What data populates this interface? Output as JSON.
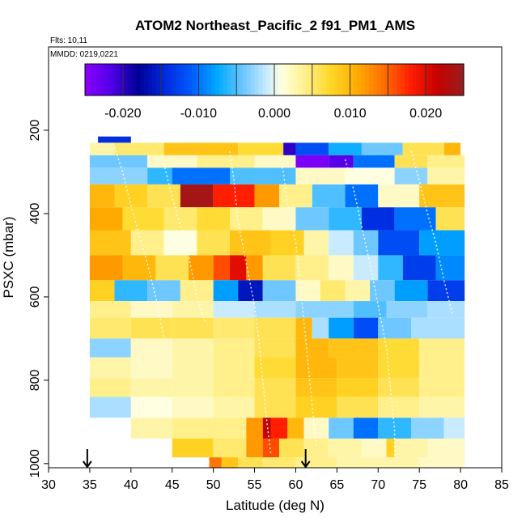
{
  "chart_data": {
    "type": "heatmap",
    "title": "ATOM2 Northeast_Pacific_2 f91_PM1_AMS",
    "annotations": {
      "flights": "Flts: 10,11",
      "dates": "MMDD: 0219,0221"
    },
    "xlabel": "Latitude (deg N)",
    "ylabel": "PSXC (mbar)",
    "xlim": [
      30,
      85
    ],
    "ylim": [
      1010,
      0
    ],
    "x_ticks": [
      "30",
      "35",
      "40",
      "45",
      "50",
      "55",
      "60",
      "65",
      "70",
      "75",
      "80",
      "85"
    ],
    "y_ticks": [
      "200",
      "400",
      "600",
      "800",
      "1000"
    ],
    "colorbar": {
      "range": [
        -0.025,
        0.025
      ],
      "tick_values": [
        -0.02,
        -0.01,
        0.0,
        0.01,
        0.02
      ],
      "tick_labels": [
        "-0.020",
        "-0.010",
        "0.000",
        "0.010",
        "0.020"
      ]
    },
    "markers": [
      {
        "type": "arrow-down",
        "x": 34.7
      },
      {
        "type": "arrow-down",
        "x": 61.2
      }
    ],
    "bands": [
      {
        "p_top": 215,
        "p_bot": 230,
        "segs": [
          [
            36,
            40,
            -0.014
          ]
        ]
      },
      {
        "p_top": 230,
        "p_bot": 260,
        "segs": [
          [
            35,
            38,
            0.003
          ],
          [
            38,
            44,
            0.005
          ],
          [
            44,
            53,
            0.009
          ],
          [
            53,
            58.5,
            0.007
          ],
          [
            58.5,
            60,
            -0.02
          ],
          [
            60,
            64,
            -0.012
          ],
          [
            64,
            68,
            -0.007
          ],
          [
            68,
            73,
            -0.004
          ],
          [
            73,
            78,
            0.006
          ],
          [
            78,
            80,
            0.01
          ]
        ]
      },
      {
        "p_top": 260,
        "p_bot": 290,
        "segs": [
          [
            35,
            42,
            -0.004
          ],
          [
            42,
            48,
            0.002
          ],
          [
            48,
            55,
            0.004
          ],
          [
            55,
            60,
            0.002
          ],
          [
            60,
            64,
            -0.024
          ],
          [
            64,
            67,
            -0.022
          ],
          [
            67,
            72,
            -0.01
          ],
          [
            72,
            76,
            0.006
          ],
          [
            76,
            80.5,
            0.004
          ]
        ]
      },
      {
        "p_top": 290,
        "p_bot": 330,
        "segs": [
          [
            35,
            42,
            -0.003
          ],
          [
            42,
            45,
            -0.006
          ],
          [
            45,
            52,
            -0.01
          ],
          [
            52,
            60,
            -0.005
          ],
          [
            60,
            66,
            0.002
          ],
          [
            66,
            72,
            0.001
          ],
          [
            72,
            76,
            -0.003
          ],
          [
            76,
            80.5,
            0.003
          ]
        ]
      },
      {
        "p_top": 330,
        "p_bot": 385,
        "segs": [
          [
            35,
            38,
            0.01
          ],
          [
            38,
            42,
            0.008
          ],
          [
            42,
            46,
            0.006
          ],
          [
            46,
            50,
            0.024
          ],
          [
            50,
            55,
            0.018
          ],
          [
            55,
            58,
            0.012
          ],
          [
            58,
            62,
            0.004
          ],
          [
            62,
            66,
            -0.005
          ],
          [
            66,
            70,
            -0.01
          ],
          [
            70,
            75,
            0.002
          ],
          [
            75,
            80.5,
            0.009
          ]
        ]
      },
      {
        "p_top": 385,
        "p_bot": 440,
        "segs": [
          [
            35,
            39,
            0.011
          ],
          [
            39,
            44,
            0.007
          ],
          [
            44,
            48,
            0.005
          ],
          [
            48,
            52,
            0.007
          ],
          [
            52,
            56,
            0.004
          ],
          [
            56,
            60,
            0.002
          ],
          [
            60,
            64,
            -0.004
          ],
          [
            64,
            68,
            -0.006
          ],
          [
            68,
            72,
            -0.014
          ],
          [
            72,
            77,
            -0.01
          ],
          [
            77,
            80.5,
            0.006
          ]
        ]
      },
      {
        "p_top": 440,
        "p_bot": 500,
        "segs": [
          [
            35,
            40,
            0.009
          ],
          [
            40,
            44,
            0.004
          ],
          [
            44,
            48,
            0.001
          ],
          [
            48,
            52,
            0.006
          ],
          [
            52,
            57,
            0.009
          ],
          [
            57,
            61,
            0.008
          ],
          [
            61,
            64,
            0.003
          ],
          [
            64,
            67,
            -0.001
          ],
          [
            67,
            70,
            -0.004
          ],
          [
            70,
            75,
            -0.012
          ],
          [
            75,
            80.5,
            -0.008
          ]
        ]
      },
      {
        "p_top": 500,
        "p_bot": 560,
        "segs": [
          [
            35,
            39,
            0.012
          ],
          [
            39,
            43,
            0.01
          ],
          [
            43,
            47,
            0.006
          ],
          [
            47,
            50,
            0.012
          ],
          [
            50,
            52,
            0.016
          ],
          [
            52,
            54,
            0.02
          ],
          [
            54,
            56,
            0.012
          ],
          [
            56,
            60,
            0.006
          ],
          [
            60,
            64,
            0.004
          ],
          [
            64,
            67,
            0.002
          ],
          [
            67,
            70,
            -0.001
          ],
          [
            70,
            73,
            -0.006
          ],
          [
            73,
            77,
            -0.013
          ],
          [
            77,
            80.5,
            -0.009
          ]
        ]
      },
      {
        "p_top": 560,
        "p_bot": 610,
        "segs": [
          [
            35,
            38,
            0.008
          ],
          [
            38,
            42,
            -0.006
          ],
          [
            42,
            46,
            -0.004
          ],
          [
            46,
            50,
            0.004
          ],
          [
            50,
            53,
            -0.008
          ],
          [
            53,
            56,
            -0.016
          ],
          [
            56,
            60,
            -0.004
          ],
          [
            60,
            63,
            0.002
          ],
          [
            63,
            66,
            0.005
          ],
          [
            66,
            69,
            0.003
          ],
          [
            69,
            72,
            -0.004
          ],
          [
            72,
            76,
            -0.008
          ],
          [
            76,
            80.5,
            -0.013
          ]
        ]
      },
      {
        "p_top": 610,
        "p_bot": 650,
        "segs": [
          [
            35,
            40,
            0.004
          ],
          [
            40,
            45,
            0.002
          ],
          [
            45,
            50,
            0.003
          ],
          [
            50,
            55,
            -0.001
          ],
          [
            55,
            60,
            -0.002
          ],
          [
            60,
            63,
            -0.003
          ],
          [
            63,
            67,
            -0.003
          ],
          [
            67,
            71,
            -0.005
          ],
          [
            71,
            76,
            -0.003
          ],
          [
            76,
            80.5,
            -0.002
          ]
        ]
      },
      {
        "p_top": 650,
        "p_bot": 700,
        "segs": [
          [
            35,
            40,
            0.005
          ],
          [
            40,
            45,
            0.006
          ],
          [
            45,
            50,
            0.006
          ],
          [
            50,
            55,
            0.005
          ],
          [
            55,
            60,
            0.006
          ],
          [
            60,
            62,
            0.01
          ],
          [
            62,
            64,
            -0.002
          ],
          [
            64,
            67,
            -0.008
          ],
          [
            67,
            70,
            -0.012
          ],
          [
            70,
            74,
            -0.004
          ],
          [
            74,
            80.5,
            -0.002
          ]
        ]
      },
      {
        "p_top": 700,
        "p_bot": 745,
        "segs": [
          [
            35,
            40,
            -0.003
          ],
          [
            40,
            45,
            0.002
          ],
          [
            45,
            50,
            0.003
          ],
          [
            50,
            55,
            0.004
          ],
          [
            55,
            60,
            0.006
          ],
          [
            60,
            64,
            0.01
          ],
          [
            64,
            70,
            0.009
          ],
          [
            70,
            75,
            0.007
          ],
          [
            75,
            80.5,
            0.004
          ]
        ]
      },
      {
        "p_top": 745,
        "p_bot": 795,
        "segs": [
          [
            35,
            40,
            0.003
          ],
          [
            40,
            45,
            0.002
          ],
          [
            45,
            50,
            0.003
          ],
          [
            50,
            55,
            0.004
          ],
          [
            55,
            60,
            0.007
          ],
          [
            60,
            65,
            0.01
          ],
          [
            65,
            70,
            0.009
          ],
          [
            70,
            75,
            0.007
          ],
          [
            75,
            80.5,
            0.004
          ]
        ]
      },
      {
        "p_top": 795,
        "p_bot": 840,
        "segs": [
          [
            35,
            40,
            0.004
          ],
          [
            40,
            45,
            0.003
          ],
          [
            45,
            50,
            0.003
          ],
          [
            50,
            55,
            0.004
          ],
          [
            55,
            60,
            0.006
          ],
          [
            60,
            65,
            0.009
          ],
          [
            65,
            70,
            0.008
          ],
          [
            70,
            75,
            0.006
          ],
          [
            75,
            80.5,
            0.004
          ]
        ]
      },
      {
        "p_top": 840,
        "p_bot": 890,
        "segs": [
          [
            35,
            40,
            -0.002
          ],
          [
            40,
            45,
            0.001
          ],
          [
            45,
            50,
            0.002
          ],
          [
            50,
            55,
            0.003
          ],
          [
            55,
            60,
            0.006
          ],
          [
            60,
            65,
            0.008
          ],
          [
            65,
            70,
            0.006
          ],
          [
            70,
            75,
            0.004
          ],
          [
            75,
            80.5,
            0.003
          ]
        ]
      },
      {
        "p_top": 890,
        "p_bot": 940,
        "segs": [
          [
            40,
            45,
            0.003
          ],
          [
            45,
            50,
            0.004
          ],
          [
            50,
            54,
            0.004
          ],
          [
            54,
            56,
            0.012
          ],
          [
            56,
            57,
            0.022
          ],
          [
            57,
            59,
            0.018
          ],
          [
            59,
            61,
            0.01
          ],
          [
            61,
            64,
            0.002
          ],
          [
            64,
            67,
            -0.004
          ],
          [
            67,
            70,
            -0.01
          ],
          [
            70,
            74,
            -0.006
          ],
          [
            74,
            78,
            -0.003
          ],
          [
            78,
            80.5,
            -0.001
          ]
        ]
      },
      {
        "p_top": 940,
        "p_bot": 985,
        "segs": [
          [
            45,
            50,
            0.008
          ],
          [
            50,
            54,
            0.005
          ],
          [
            54,
            56,
            0.012
          ],
          [
            56,
            58,
            0.016
          ],
          [
            58,
            61,
            0.006
          ],
          [
            61,
            64,
            0.004
          ],
          [
            64,
            68,
            0.003
          ],
          [
            68,
            71,
            0.002
          ],
          [
            71,
            72,
            0.008
          ],
          [
            72,
            76,
            0.003
          ],
          [
            76,
            80.5,
            0.002
          ]
        ]
      },
      {
        "p_top": 985,
        "p_bot": 1010,
        "segs": [
          [
            49.5,
            51,
            0.014
          ],
          [
            51,
            53,
            0.009
          ],
          [
            53,
            56,
            0.006
          ],
          [
            56,
            60,
            0.005
          ],
          [
            60,
            65,
            0.004
          ],
          [
            65,
            70,
            0.003
          ],
          [
            70,
            75,
            0.003
          ],
          [
            75,
            80.5,
            0.002
          ]
        ]
      }
    ],
    "trajectories": [
      [
        [
          38,
          240
        ],
        [
          39,
          300
        ],
        [
          40,
          380
        ],
        [
          41,
          450
        ],
        [
          42,
          520
        ],
        [
          43,
          600
        ],
        [
          44,
          700
        ]
      ],
      [
        [
          44,
          280
        ],
        [
          45,
          360
        ],
        [
          46,
          430
        ],
        [
          47,
          500
        ],
        [
          48,
          600
        ],
        [
          49,
          660
        ]
      ],
      [
        [
          52,
          250
        ],
        [
          52.5,
          320
        ],
        [
          53,
          420
        ],
        [
          54,
          520
        ],
        [
          55,
          620
        ],
        [
          55.5,
          700
        ],
        [
          56,
          800
        ],
        [
          56.5,
          900
        ],
        [
          57,
          980
        ]
      ],
      [
        [
          58,
          260
        ],
        [
          58.5,
          300
        ],
        [
          59,
          380
        ],
        [
          60,
          470
        ],
        [
          60.5,
          560
        ],
        [
          61,
          660
        ],
        [
          61.5,
          760
        ],
        [
          62,
          860
        ],
        [
          62.5,
          960
        ]
      ],
      [
        [
          66,
          270
        ],
        [
          67,
          340
        ],
        [
          68,
          430
        ],
        [
          69,
          520
        ],
        [
          70,
          620
        ],
        [
          71,
          720
        ],
        [
          71.5,
          820
        ],
        [
          72,
          920
        ],
        [
          72,
          990
        ]
      ],
      [
        [
          74,
          250
        ],
        [
          75,
          320
        ],
        [
          76,
          400
        ],
        [
          77,
          470
        ],
        [
          78,
          560
        ],
        [
          79,
          640
        ]
      ]
    ]
  }
}
